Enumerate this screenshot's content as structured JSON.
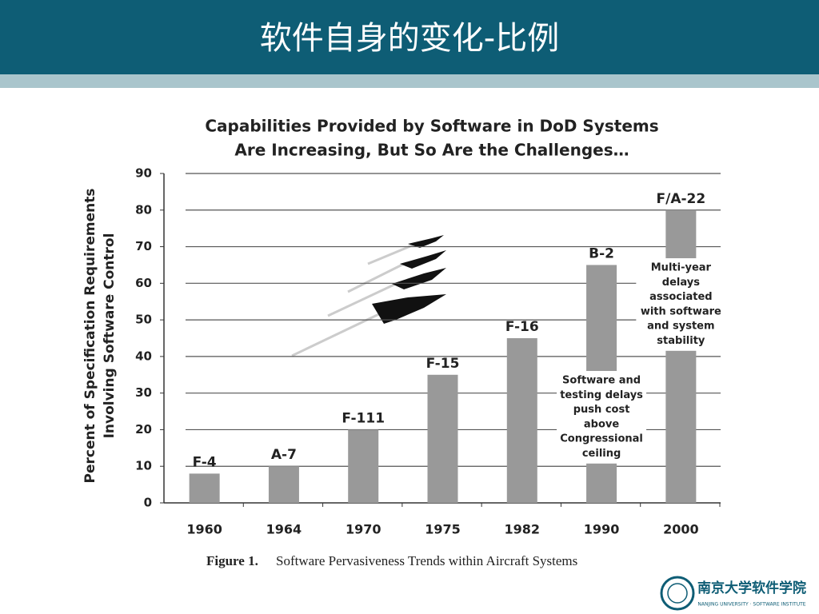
{
  "slide": {
    "title": "软件自身的变化-比例"
  },
  "logo": {
    "name": "南京大学软件学院",
    "subtitle": "NANJING UNIVERSITY · SOFTWARE INSTITUTE"
  },
  "chart_data": {
    "type": "bar",
    "title": [
      "Capabilities Provided by Software in DoD Systems",
      "Are Increasing, But So Are the Challenges…"
    ],
    "y_label": [
      "Percent of Specification Requirements",
      "Involving Software Control"
    ],
    "categories": [
      "1960",
      "1964",
      "1970",
      "1975",
      "1982",
      "1990",
      "2000"
    ],
    "values": [
      8,
      10,
      20,
      35,
      45,
      65,
      80
    ],
    "bar_labels": [
      "F-4",
      "A-7",
      "F-111",
      "F-15",
      "F-16",
      "B-2",
      "F/A-22"
    ],
    "color": "#999999",
    "ylim": [
      0,
      90
    ],
    "yticks": [
      0,
      10,
      20,
      30,
      40,
      50,
      60,
      70,
      80,
      90
    ],
    "grid": true,
    "annotations": [
      {
        "category": "1990",
        "lines": [
          "Software and",
          "testing delays",
          "push cost",
          "above",
          "Congressional",
          "ceiling"
        ]
      },
      {
        "category": "2000",
        "lines": [
          "Multi-year",
          "delays",
          "associated",
          "with software",
          "and system",
          "stability"
        ]
      }
    ],
    "caption": {
      "label": "Figure 1.",
      "text": "Software Pervasiveness Trends within Aircraft Systems"
    }
  }
}
